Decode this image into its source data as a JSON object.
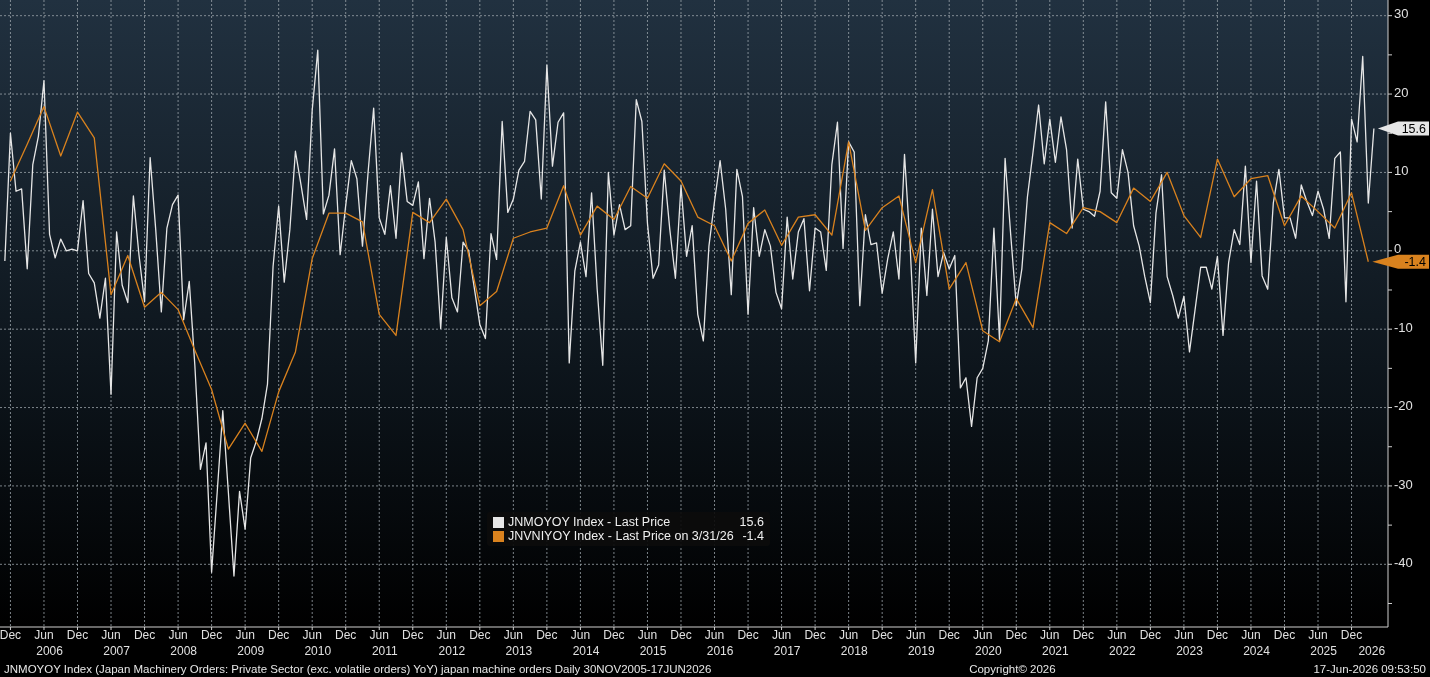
{
  "chart_data": {
    "type": "line",
    "annotations": [
      "JNMOYOY Index (Japan Machinery Orders: Private Sector (exc. volatile orders) YoY) japan machine orders Daily 30NOV2005-17JUN2026",
      "Copyright© 2026",
      "17-Jun-2026 09:53:50"
    ],
    "xlim": [
      "2005-10-05",
      "2026-06-17"
    ],
    "xticks": [
      {
        "value": "2005-12",
        "label": "Dec"
      },
      {
        "value": "2006-06",
        "label": "Jun"
      },
      {
        "value": "2006-12",
        "label": "Dec"
      },
      {
        "value": "2007-06",
        "label": "Jun"
      },
      {
        "value": "2007-12",
        "label": "Dec"
      },
      {
        "value": "2008-06",
        "label": "Jun"
      },
      {
        "value": "2008-12",
        "label": "Dec"
      },
      {
        "value": "2009-06",
        "label": "Jun"
      },
      {
        "value": "2009-12",
        "label": "Dec"
      },
      {
        "value": "2010-06",
        "label": "Jun"
      },
      {
        "value": "2010-12",
        "label": "Dec"
      },
      {
        "value": "2011-06",
        "label": "Jun"
      },
      {
        "value": "2011-12",
        "label": "Dec"
      },
      {
        "value": "2012-06",
        "label": "Jun"
      },
      {
        "value": "2012-12",
        "label": "Dec"
      },
      {
        "value": "2013-06",
        "label": "Jun"
      },
      {
        "value": "2013-12",
        "label": "Dec"
      },
      {
        "value": "2014-06",
        "label": "Jun"
      },
      {
        "value": "2014-12",
        "label": "Dec"
      },
      {
        "value": "2015-06",
        "label": "Jun"
      },
      {
        "value": "2015-12",
        "label": "Dec"
      },
      {
        "value": "2016-06",
        "label": "Jun"
      },
      {
        "value": "2016-12",
        "label": "Dec"
      },
      {
        "value": "2017-06",
        "label": "Jun"
      },
      {
        "value": "2017-12",
        "label": "Dec"
      },
      {
        "value": "2018-06",
        "label": "Jun"
      },
      {
        "value": "2018-12",
        "label": "Dec"
      },
      {
        "value": "2019-06",
        "label": "Jun"
      },
      {
        "value": "2019-12",
        "label": "Dec"
      },
      {
        "value": "2020-06",
        "label": "Jun"
      },
      {
        "value": "2020-12",
        "label": "Dec"
      },
      {
        "value": "2021-06",
        "label": "Jun"
      },
      {
        "value": "2021-12",
        "label": "Dec"
      },
      {
        "value": "2022-06",
        "label": "Jun"
      },
      {
        "value": "2022-12",
        "label": "Dec"
      },
      {
        "value": "2023-06",
        "label": "Jun"
      },
      {
        "value": "2023-12",
        "label": "Dec"
      },
      {
        "value": "2024-06",
        "label": "Jun"
      },
      {
        "value": "2024-12",
        "label": "Dec"
      },
      {
        "value": "2025-06",
        "label": "Jun"
      },
      {
        "value": "2025-12",
        "label": "Dec"
      }
    ],
    "x2lim": [
      "2005-10-05",
      "2026-06-17"
    ],
    "x2ticks": [
      {
        "value": "2006-07",
        "label": "2006"
      },
      {
        "value": "2007-07",
        "label": "2007"
      },
      {
        "value": "2008-07",
        "label": "2008"
      },
      {
        "value": "2009-07",
        "label": "2009"
      },
      {
        "value": "2010-07",
        "label": "2010"
      },
      {
        "value": "2011-07",
        "label": "2011"
      },
      {
        "value": "2012-07",
        "label": "2012"
      },
      {
        "value": "2013-07",
        "label": "2013"
      },
      {
        "value": "2014-07",
        "label": "2014"
      },
      {
        "value": "2015-07",
        "label": "2015"
      },
      {
        "value": "2016-07",
        "label": "2016"
      },
      {
        "value": "2017-07",
        "label": "2017"
      },
      {
        "value": "2018-07",
        "label": "2018"
      },
      {
        "value": "2019-07",
        "label": "2019"
      },
      {
        "value": "2020-07",
        "label": "2020"
      },
      {
        "value": "2021-07",
        "label": "2021"
      },
      {
        "value": "2022-07",
        "label": "2022"
      },
      {
        "value": "2023-07",
        "label": "2023"
      },
      {
        "value": "2024-07",
        "label": "2024"
      },
      {
        "value": "2025-07",
        "label": "2025"
      },
      {
        "value": "2026-03-20",
        "label": "2026"
      }
    ],
    "ylim": [
      -48,
      32
    ],
    "yticks": [
      {
        "value": -45,
        "label": null
      },
      -40,
      {
        "value": -35,
        "label": null
      },
      -30,
      {
        "value": -25,
        "label": null
      },
      -20,
      {
        "value": -15,
        "label": null
      },
      -10,
      {
        "value": -5,
        "label": null
      },
      0,
      {
        "value": 5,
        "label": null
      },
      10,
      {
        "value": 15,
        "label": null
      },
      20,
      {
        "value": 25,
        "label": null
      },
      30
    ],
    "grid": true,
    "legend": "bottom",
    "series": [
      {
        "name": "JNMOYOY Index - Last Price",
        "color": "#e6e6e6",
        "x": [
          "2005-11",
          "2005-12",
          "2006-01",
          "2006-02",
          "2006-03",
          "2006-04",
          "2006-05",
          "2006-06",
          "2006-07",
          "2006-08",
          "2006-09",
          "2006-10",
          "2006-11",
          "2006-12",
          "2007-01",
          "2007-02",
          "2007-03",
          "2007-04",
          "2007-05",
          "2007-06",
          "2007-07",
          "2007-08",
          "2007-09",
          "2007-10",
          "2007-11",
          "2007-12",
          "2008-01",
          "2008-02",
          "2008-03",
          "2008-04",
          "2008-05",
          "2008-06",
          "2008-07",
          "2008-08",
          "2008-09",
          "2008-10",
          "2008-11",
          "2008-12",
          "2009-01",
          "2009-02",
          "2009-03",
          "2009-04",
          "2009-05",
          "2009-06",
          "2009-07",
          "2009-08",
          "2009-09",
          "2009-10",
          "2009-11",
          "2009-12",
          "2010-01",
          "2010-02",
          "2010-03",
          "2010-04",
          "2010-05",
          "2010-06",
          "2010-07",
          "2010-08",
          "2010-09",
          "2010-10",
          "2010-11",
          "2010-12",
          "2011-01",
          "2011-02",
          "2011-03",
          "2011-04",
          "2011-05",
          "2011-06",
          "2011-07",
          "2011-08",
          "2011-09",
          "2011-10",
          "2011-11",
          "2011-12",
          "2012-01",
          "2012-02",
          "2012-03",
          "2012-04",
          "2012-05",
          "2012-06",
          "2012-07",
          "2012-08",
          "2012-09",
          "2012-10",
          "2012-11",
          "2012-12",
          "2013-01",
          "2013-02",
          "2013-03",
          "2013-04",
          "2013-05",
          "2013-06",
          "2013-07",
          "2013-08",
          "2013-09",
          "2013-10",
          "2013-11",
          "2013-12",
          "2014-01",
          "2014-02",
          "2014-03",
          "2014-04",
          "2014-05",
          "2014-06",
          "2014-07",
          "2014-08",
          "2014-09",
          "2014-10",
          "2014-11",
          "2014-12",
          "2015-01",
          "2015-02",
          "2015-03",
          "2015-04",
          "2015-05",
          "2015-06",
          "2015-07",
          "2015-08",
          "2015-09",
          "2015-10",
          "2015-11",
          "2015-12",
          "2016-01",
          "2016-02",
          "2016-03",
          "2016-04",
          "2016-05",
          "2016-06",
          "2016-07",
          "2016-08",
          "2016-09",
          "2016-10",
          "2016-11",
          "2016-12",
          "2017-01",
          "2017-02",
          "2017-03",
          "2017-04",
          "2017-05",
          "2017-06",
          "2017-07",
          "2017-08",
          "2017-09",
          "2017-10",
          "2017-11",
          "2017-12",
          "2018-01",
          "2018-02",
          "2018-03",
          "2018-04",
          "2018-05",
          "2018-06",
          "2018-07",
          "2018-08",
          "2018-09",
          "2018-10",
          "2018-11",
          "2018-12",
          "2019-01",
          "2019-02",
          "2019-03",
          "2019-04",
          "2019-05",
          "2019-06",
          "2019-07",
          "2019-08",
          "2019-09",
          "2019-10",
          "2019-11",
          "2019-12",
          "2020-01",
          "2020-02",
          "2020-03",
          "2020-04",
          "2020-05",
          "2020-06",
          "2020-07",
          "2020-08",
          "2020-09",
          "2020-10",
          "2020-11",
          "2020-12",
          "2021-01",
          "2021-02",
          "2021-03",
          "2021-04",
          "2021-05",
          "2021-06",
          "2021-07",
          "2021-08",
          "2021-09",
          "2021-10",
          "2021-11",
          "2021-12",
          "2022-01",
          "2022-02",
          "2022-03",
          "2022-04",
          "2022-05",
          "2022-06",
          "2022-07",
          "2022-08",
          "2022-09",
          "2022-10",
          "2022-11",
          "2022-12",
          "2023-01",
          "2023-02",
          "2023-03",
          "2023-04",
          "2023-05",
          "2023-06",
          "2023-07",
          "2023-08",
          "2023-09",
          "2023-10",
          "2023-11",
          "2023-12",
          "2024-01",
          "2024-02",
          "2024-03",
          "2024-04",
          "2024-05",
          "2024-06",
          "2024-07",
          "2024-08",
          "2024-09",
          "2024-10",
          "2024-11",
          "2024-12",
          "2025-01",
          "2025-02",
          "2025-03",
          "2025-04",
          "2025-05",
          "2025-06",
          "2025-07",
          "2025-08",
          "2025-09",
          "2025-10",
          "2025-11",
          "2025-12",
          "2026-01",
          "2026-02",
          "2026-03",
          "2026-04"
        ],
        "values": [
          -1.3,
          15,
          7.6,
          7.9,
          -2.3,
          11,
          14.6,
          21.7,
          2.1,
          -0.9,
          1.5,
          0,
          0.2,
          0,
          6.4,
          -2.9,
          -4.1,
          -8.6,
          -3.5,
          -18.3,
          2.4,
          -4.4,
          -6.6,
          7,
          -0.5,
          -6.5,
          11.9,
          2.7,
          -7.8,
          2.9,
          5.9,
          7.1,
          -8.8,
          -3.9,
          -14.6,
          -27.9,
          -24.5,
          -41,
          -30.8,
          -20.4,
          -30.8,
          -41.5,
          -30.7,
          -35.5,
          -26.4,
          -24.3,
          -21.4,
          -17,
          -2,
          5.7,
          -4,
          2.7,
          12.7,
          8.4,
          4,
          17.9,
          25.6,
          4.7,
          7.1,
          13,
          -0.5,
          5.8,
          11.5,
          9.2,
          0.6,
          10,
          18.2,
          4.2,
          2.1,
          8.3,
          1.6,
          12.5,
          6.3,
          5.8,
          8.8,
          -1,
          6.7,
          1.1,
          -9.9,
          1.7,
          -6,
          -7.8,
          1.1,
          0,
          -4.7,
          -9.4,
          -11.2,
          2.2,
          -1.1,
          16.5,
          4.9,
          6.6,
          10.3,
          11.4,
          17.8,
          16.7,
          6.6,
          23.7,
          10.8,
          16.4,
          17.6,
          -14.3,
          -2.6,
          1.1,
          -3.3,
          7.4,
          -4.9,
          -14.6,
          10,
          2,
          5.9,
          2.7,
          3.2,
          19.3,
          16.5,
          3.5,
          -3.5,
          -1.8,
          10.3,
          2.7,
          -3.5,
          8.3,
          -0.7,
          3.2,
          -8.1,
          -11.5,
          0.6,
          6.3,
          11.5,
          5.3,
          -5.6,
          10.4,
          6.9,
          -8.1,
          5.5,
          -0.7,
          2.7,
          0.6,
          -5.3,
          -7.4,
          4.3,
          -3.6,
          2.4,
          4.1,
          -5.1,
          2.9,
          2.4,
          -2.5,
          11,
          16.4,
          0.3,
          13.9,
          12.6,
          -7,
          4.6,
          0.8,
          1,
          -5.4,
          -1,
          2.4,
          -3.6,
          12.3,
          0.7,
          -14.3,
          2.9,
          -5.7,
          5.3,
          -3.3,
          -0.2,
          -2.3,
          -0.6,
          -17.5,
          -16.2,
          -22.4,
          -16.2,
          -15,
          -11.5,
          2.9,
          -11.4,
          11.8,
          2.1,
          -7,
          -2.3,
          6.9,
          12.6,
          18.6,
          11.1,
          16.8,
          11.3,
          17.1,
          12.9,
          2.9,
          11.7,
          5.3,
          5,
          4.4,
          7.6,
          19,
          7.4,
          6.7,
          12.9,
          10,
          3.2,
          0.6,
          -3.3,
          -6.6,
          4.8,
          9.7,
          -3.3,
          -5.7,
          -8.6,
          -5.8,
          -12.9,
          -7.5,
          -2.1,
          -2.1,
          -4.9,
          -0.7,
          -10.8,
          -1.5,
          2.7,
          0.8,
          10.8,
          -1.5,
          8.9,
          -3.2,
          -4.9,
          6.1,
          10.4,
          4.2,
          4.2,
          1.6,
          8.4,
          6.3,
          4.5,
          7.6,
          5.3,
          1.6,
          11.8,
          12.6,
          -6.5,
          16.8,
          13.9,
          24.8,
          6.1,
          15.6
        ],
        "value_labels": [
          null,
          null,
          null,
          null,
          null,
          null,
          null,
          null,
          null,
          null,
          null,
          null,
          null,
          null,
          null,
          null,
          null,
          null,
          null,
          null,
          null,
          null,
          null,
          null,
          null,
          null,
          null,
          null,
          null,
          null,
          null,
          null,
          null,
          null,
          null,
          null,
          null,
          null,
          null,
          null,
          null,
          null,
          null,
          null,
          null,
          null,
          null,
          null,
          null,
          null,
          null,
          null,
          null,
          null,
          null,
          null,
          null,
          null,
          null,
          null,
          null,
          null,
          null,
          null,
          null,
          null,
          null,
          null,
          null,
          null,
          null,
          null,
          null,
          null,
          null,
          null,
          null,
          null,
          null,
          null,
          null,
          null,
          null,
          null,
          null,
          null,
          null,
          null,
          null,
          null,
          null,
          null,
          null,
          null,
          null,
          null,
          null,
          null,
          null,
          null,
          null,
          null,
          null,
          null,
          null,
          null,
          null,
          null,
          null,
          null,
          null,
          null,
          null,
          null,
          null,
          null,
          null,
          null,
          null,
          null,
          null,
          null,
          null,
          null,
          null,
          null,
          null,
          null,
          null,
          null,
          null,
          null,
          null,
          null,
          null,
          null,
          null,
          null,
          null,
          null,
          null,
          null,
          null,
          null,
          null,
          null,
          null,
          null,
          null,
          null,
          null,
          null,
          null,
          null,
          null,
          null,
          null,
          null,
          null,
          null,
          null,
          null,
          null,
          null,
          null,
          null,
          null,
          null,
          null,
          null,
          null,
          null,
          null,
          null,
          null,
          null,
          null,
          null,
          null,
          null,
          null,
          null,
          null,
          null,
          null,
          null,
          null,
          null,
          null,
          null,
          null,
          null,
          null,
          null,
          null,
          null,
          null,
          null,
          null,
          null,
          null,
          null,
          null,
          null,
          null,
          null,
          null,
          null,
          null,
          null,
          null,
          null,
          null,
          null,
          null,
          null,
          null,
          null,
          null,
          null,
          null,
          null,
          null,
          null,
          null,
          null,
          null,
          null,
          null,
          null,
          null,
          null,
          null,
          null,
          null,
          null,
          null,
          null,
          null,
          null,
          null,
          null,
          null,
          null,
          null,
          "15.6"
        ]
      },
      {
        "name": "JNVNIYOY Index - Last Price on 3/31/26",
        "color": "#d9821e",
        "x": [
          "2005-12",
          "2006-03",
          "2006-06",
          "2006-09",
          "2006-12",
          "2007-03",
          "2007-06",
          "2007-09",
          "2007-12",
          "2008-03",
          "2008-06",
          "2008-09",
          "2008-12",
          "2009-03",
          "2009-06",
          "2009-09",
          "2009-12",
          "2010-03",
          "2010-06",
          "2010-09",
          "2010-12",
          "2011-03",
          "2011-06",
          "2011-09",
          "2011-12",
          "2012-03",
          "2012-06",
          "2012-09",
          "2012-12",
          "2013-03",
          "2013-06",
          "2013-09",
          "2013-12",
          "2014-03",
          "2014-06",
          "2014-09",
          "2014-12",
          "2015-03",
          "2015-06",
          "2015-09",
          "2015-12",
          "2016-03",
          "2016-06",
          "2016-09",
          "2016-12",
          "2017-03",
          "2017-06",
          "2017-09",
          "2017-12",
          "2018-03",
          "2018-06",
          "2018-09",
          "2018-12",
          "2019-03",
          "2019-06",
          "2019-09",
          "2019-12",
          "2020-03",
          "2020-06",
          "2020-09",
          "2020-12",
          "2021-03",
          "2021-06",
          "2021-09",
          "2021-12",
          "2022-03",
          "2022-06",
          "2022-09",
          "2022-12",
          "2023-03",
          "2023-06",
          "2023-09",
          "2023-12",
          "2024-03",
          "2024-06",
          "2024-09",
          "2024-12",
          "2025-03",
          "2025-06",
          "2025-09",
          "2025-12",
          "2026-03"
        ],
        "values": [
          8.9,
          13.6,
          18.4,
          12.1,
          17.7,
          14.4,
          -5.6,
          -0.6,
          -7.2,
          -5.3,
          -7.5,
          -12.7,
          -17.7,
          -25.3,
          -22,
          -25.6,
          -18,
          -12.9,
          -1,
          4.8,
          4.8,
          3.7,
          -8.1,
          -10.8,
          4.9,
          3.6,
          6.6,
          2.7,
          -7,
          -5.2,
          1.6,
          2.4,
          2.9,
          8.3,
          2,
          5.7,
          4,
          8.2,
          6.7,
          11.1,
          8.9,
          4.3,
          3.2,
          -1.3,
          3.5,
          5.2,
          0.7,
          4.3,
          4.6,
          2,
          13.9,
          2.6,
          5.5,
          7,
          -1.5,
          7.8,
          -4.9,
          -1.5,
          -10.2,
          -11.6,
          -6.1,
          -9.8,
          3.6,
          2.2,
          5.5,
          5,
          3.6,
          8,
          6.3,
          10,
          4.5,
          1.7,
          11.7,
          6.9,
          9.2,
          9.6,
          3.2,
          7,
          5,
          2.9,
          7.4,
          -1.4
        ],
        "value_labels": [
          null,
          null,
          null,
          null,
          null,
          null,
          null,
          null,
          null,
          null,
          null,
          null,
          null,
          null,
          null,
          null,
          null,
          null,
          null,
          null,
          null,
          null,
          null,
          null,
          null,
          null,
          null,
          null,
          null,
          null,
          null,
          null,
          null,
          null,
          null,
          null,
          null,
          null,
          null,
          null,
          null,
          null,
          null,
          null,
          null,
          null,
          null,
          null,
          null,
          null,
          null,
          null,
          null,
          null,
          null,
          null,
          null,
          null,
          null,
          null,
          null,
          null,
          null,
          null,
          null,
          null,
          null,
          null,
          null,
          null,
          null,
          null,
          null,
          null,
          null,
          null,
          null,
          null,
          null,
          null,
          null,
          "-1.4"
        ]
      }
    ]
  }
}
